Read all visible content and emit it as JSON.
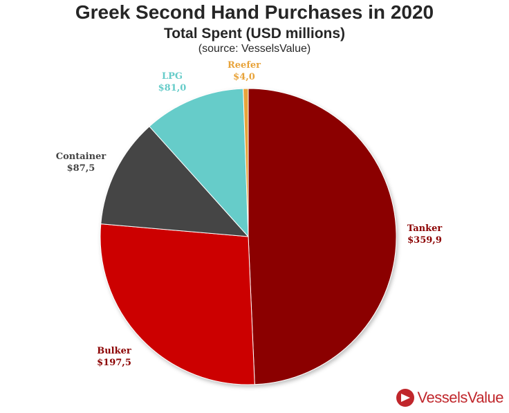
{
  "chart_data": {
    "type": "pie",
    "title": "Greek Second Hand Purchases in 2020",
    "subtitle": "Total Spent (USD millions)",
    "source": "(source: VesselsValue)",
    "slices": [
      {
        "name": "Tanker",
        "value": 359.9,
        "label": "$359,9",
        "color": "#8b0000"
      },
      {
        "name": "Bulker",
        "value": 197.5,
        "label": "$197,5",
        "color": "#cc0000"
      },
      {
        "name": "Container",
        "value": 87.5,
        "label": "$87,5",
        "color": "#444444"
      },
      {
        "name": "LPG",
        "value": 81.0,
        "label": "$81,0",
        "color": "#66ccc9"
      },
      {
        "name": "Reefer",
        "value": 4.0,
        "label": "$4,0",
        "color": "#e8a33a"
      }
    ],
    "label_colors": {
      "Tanker": "#8b0000",
      "Bulker": "#8b0000",
      "Container": "#444444",
      "LPG": "#66ccc9",
      "Reefer": "#e8a33a"
    }
  },
  "logo": {
    "text": "VesselsValue",
    "color": "#c0262b"
  }
}
